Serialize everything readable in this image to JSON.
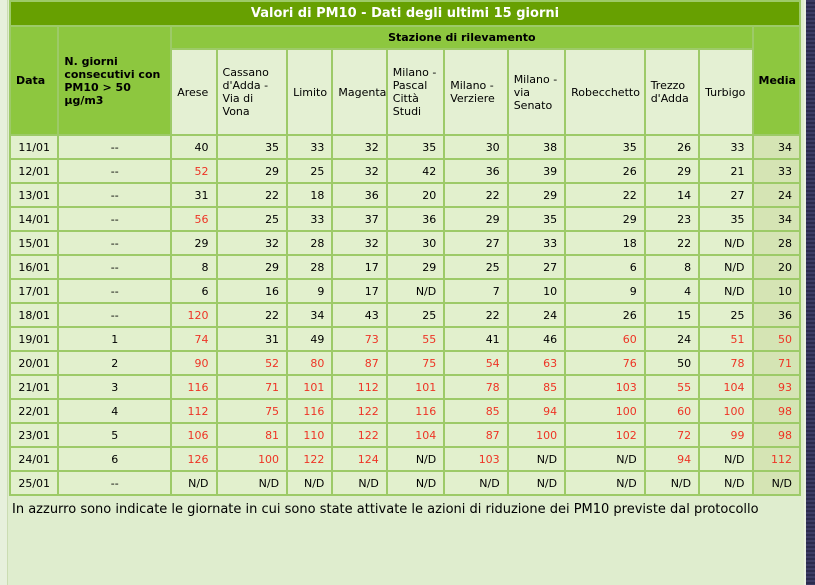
{
  "title": "Valori di PM10 - Dati degli ultimi 15 giorni",
  "table": {
    "col_data_label": "Data",
    "col_giorni_label": "N. giorni consecutivi con PM10 > 50 µg/m3",
    "group_header": "Stazione di rilevamento",
    "col_media_label": "Media",
    "stations": [
      "Arese",
      "Cassano d'Adda - Via di Vona",
      "Limito",
      "Magenta",
      "Milano - Pascal Città Studi",
      "Milano - Verziere",
      "Milano - via Senato",
      "Robecchetto",
      "Trezzo d'Adda",
      "Turbigo"
    ],
    "rows": [
      {
        "date": "11/01",
        "giorni": "--",
        "values": [
          "40",
          "35",
          "33",
          "32",
          "35",
          "30",
          "38",
          "35",
          "26",
          "33"
        ],
        "red": [
          false,
          false,
          false,
          false,
          false,
          false,
          false,
          false,
          false,
          false
        ],
        "media": "34",
        "media_red": false
      },
      {
        "date": "12/01",
        "giorni": "--",
        "values": [
          "52",
          "29",
          "25",
          "32",
          "42",
          "36",
          "39",
          "26",
          "29",
          "21"
        ],
        "red": [
          true,
          false,
          false,
          false,
          false,
          false,
          false,
          false,
          false,
          false
        ],
        "media": "33",
        "media_red": false
      },
      {
        "date": "13/01",
        "giorni": "--",
        "values": [
          "31",
          "22",
          "18",
          "36",
          "20",
          "22",
          "29",
          "22",
          "14",
          "27"
        ],
        "red": [
          false,
          false,
          false,
          false,
          false,
          false,
          false,
          false,
          false,
          false
        ],
        "media": "24",
        "media_red": false
      },
      {
        "date": "14/01",
        "giorni": "--",
        "values": [
          "56",
          "25",
          "33",
          "37",
          "36",
          "29",
          "35",
          "29",
          "23",
          "35"
        ],
        "red": [
          true,
          false,
          false,
          false,
          false,
          false,
          false,
          false,
          false,
          false
        ],
        "media": "34",
        "media_red": false
      },
      {
        "date": "15/01",
        "giorni": "--",
        "values": [
          "29",
          "32",
          "28",
          "32",
          "30",
          "27",
          "33",
          "18",
          "22",
          "N/D"
        ],
        "red": [
          false,
          false,
          false,
          false,
          false,
          false,
          false,
          false,
          false,
          false
        ],
        "media": "28",
        "media_red": false
      },
      {
        "date": "16/01",
        "giorni": "--",
        "values": [
          "8",
          "29",
          "28",
          "17",
          "29",
          "25",
          "27",
          "6",
          "8",
          "N/D"
        ],
        "red": [
          false,
          false,
          false,
          false,
          false,
          false,
          false,
          false,
          false,
          false
        ],
        "media": "20",
        "media_red": false
      },
      {
        "date": "17/01",
        "giorni": "--",
        "values": [
          "6",
          "16",
          "9",
          "17",
          "N/D",
          "7",
          "10",
          "9",
          "4",
          "N/D"
        ],
        "red": [
          false,
          false,
          false,
          false,
          false,
          false,
          false,
          false,
          false,
          false
        ],
        "media": "10",
        "media_red": false
      },
      {
        "date": "18/01",
        "giorni": "--",
        "values": [
          "120",
          "22",
          "34",
          "43",
          "25",
          "22",
          "24",
          "26",
          "15",
          "25"
        ],
        "red": [
          true,
          false,
          false,
          false,
          false,
          false,
          false,
          false,
          false,
          false
        ],
        "media": "36",
        "media_red": false
      },
      {
        "date": "19/01",
        "giorni": "1",
        "values": [
          "74",
          "31",
          "49",
          "73",
          "55",
          "41",
          "46",
          "60",
          "24",
          "51"
        ],
        "red": [
          true,
          false,
          false,
          true,
          true,
          false,
          false,
          true,
          false,
          true
        ],
        "media": "50",
        "media_red": true
      },
      {
        "date": "20/01",
        "giorni": "2",
        "values": [
          "90",
          "52",
          "80",
          "87",
          "75",
          "54",
          "63",
          "76",
          "50",
          "78"
        ],
        "red": [
          true,
          true,
          true,
          true,
          true,
          true,
          true,
          true,
          false,
          true
        ],
        "media": "71",
        "media_red": true
      },
      {
        "date": "21/01",
        "giorni": "3",
        "values": [
          "116",
          "71",
          "101",
          "112",
          "101",
          "78",
          "85",
          "103",
          "55",
          "104"
        ],
        "red": [
          true,
          true,
          true,
          true,
          true,
          true,
          true,
          true,
          true,
          true
        ],
        "media": "93",
        "media_red": true
      },
      {
        "date": "22/01",
        "giorni": "4",
        "values": [
          "112",
          "75",
          "116",
          "122",
          "116",
          "85",
          "94",
          "100",
          "60",
          "100"
        ],
        "red": [
          true,
          true,
          true,
          true,
          true,
          true,
          true,
          true,
          true,
          true
        ],
        "media": "98",
        "media_red": true
      },
      {
        "date": "23/01",
        "giorni": "5",
        "values": [
          "106",
          "81",
          "110",
          "122",
          "104",
          "87",
          "100",
          "102",
          "72",
          "99"
        ],
        "red": [
          true,
          true,
          true,
          true,
          true,
          true,
          true,
          true,
          true,
          true
        ],
        "media": "98",
        "media_red": true
      },
      {
        "date": "24/01",
        "giorni": "6",
        "values": [
          "126",
          "100",
          "122",
          "124",
          "N/D",
          "103",
          "N/D",
          "N/D",
          "94",
          "N/D"
        ],
        "red": [
          true,
          true,
          true,
          true,
          false,
          true,
          false,
          false,
          true,
          false
        ],
        "media": "112",
        "media_red": true
      },
      {
        "date": "25/01",
        "giorni": "--",
        "values": [
          "N/D",
          "N/D",
          "N/D",
          "N/D",
          "N/D",
          "N/D",
          "N/D",
          "N/D",
          "N/D",
          "N/D"
        ],
        "red": [
          false,
          false,
          false,
          false,
          false,
          false,
          false,
          false,
          false,
          false
        ],
        "media": "N/D",
        "media_red": false
      }
    ]
  },
  "footer_note": "In azzurro sono indicate le giornate in cui sono state attivate le azioni di riduzione dei PM10 previste dal protocollo",
  "colors": {
    "title_bar": "#67A001",
    "header_green": "#8DC73F",
    "station_header_bg": "#E4F0D3",
    "cell_bg": "#E2F0CD",
    "media_bg": "#D5E4B4",
    "alert_red": "#EE3425",
    "grid_border": "#9DCA68",
    "outer_border": "#2E6301",
    "page_bg": "#DFEDCE",
    "side_strip_navy": "#32325A"
  }
}
